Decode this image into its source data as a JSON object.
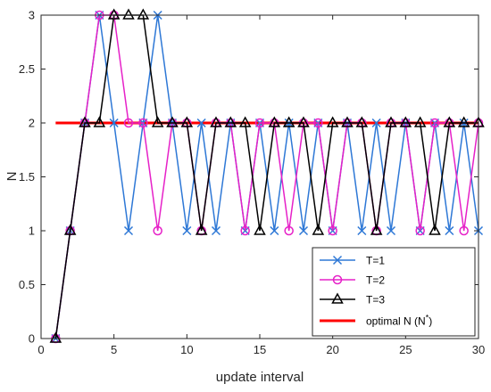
{
  "chart_data": {
    "type": "line",
    "title": "",
    "xlabel": "update interval",
    "ylabel": "N",
    "xlim": [
      0,
      30
    ],
    "ylim": [
      0,
      3
    ],
    "xticks": [
      "0",
      "5",
      "10",
      "15",
      "20",
      "25",
      "30"
    ],
    "yticks": [
      "0",
      "0.5",
      "1",
      "1.5",
      "2",
      "2.5",
      "3"
    ],
    "grid": false,
    "legend_position": "bottom-right",
    "x": [
      1,
      2,
      3,
      4,
      5,
      6,
      7,
      8,
      9,
      10,
      11,
      12,
      13,
      14,
      15,
      16,
      17,
      18,
      19,
      20,
      21,
      22,
      23,
      24,
      25,
      26,
      27,
      28,
      29,
      30
    ],
    "series": [
      {
        "name": "T=1",
        "marker": "x",
        "color": "#2e78d6",
        "values": [
          0,
          1,
          2,
          3,
          2,
          1,
          2,
          3,
          2,
          1,
          2,
          1,
          2,
          1,
          2,
          1,
          2,
          1,
          2,
          1,
          2,
          1,
          2,
          1,
          2,
          1,
          2,
          1,
          2,
          1
        ]
      },
      {
        "name": "T=2",
        "marker": "o",
        "color": "#e621c8",
        "values": [
          0,
          1,
          2,
          3,
          3,
          2,
          2,
          1,
          2,
          2,
          1,
          2,
          2,
          1,
          2,
          2,
          1,
          2,
          2,
          1,
          2,
          2,
          1,
          2,
          2,
          1,
          2,
          2,
          1,
          2
        ]
      },
      {
        "name": "T=3",
        "marker": "triangle",
        "color": "#000000",
        "values": [
          0,
          1,
          2,
          2,
          3,
          3,
          3,
          2,
          2,
          2,
          1,
          2,
          2,
          2,
          1,
          2,
          2,
          2,
          1,
          2,
          2,
          2,
          1,
          2,
          2,
          2,
          1,
          2,
          2,
          2
        ]
      }
    ],
    "reference_line": {
      "name_text": "optimal N (N",
      "name_sup": "*",
      "name_close": ")",
      "value": 2,
      "x_from": 1,
      "x_to": 30,
      "color": "#ff0000"
    }
  }
}
